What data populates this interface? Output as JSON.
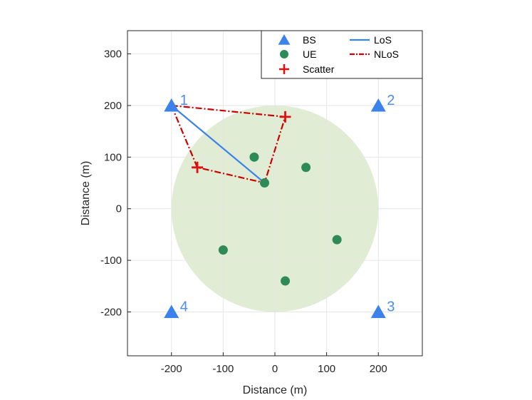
{
  "chart_data": {
    "type": "scatter",
    "xlabel": "Distance (m)",
    "ylabel": "Distance (m)",
    "xlim": [
      -285,
      285
    ],
    "ylim": [
      -285,
      345
    ],
    "xticks": [
      -200,
      -100,
      0,
      100,
      200
    ],
    "yticks": [
      -200,
      -100,
      0,
      100,
      200,
      300
    ],
    "grid": true,
    "legend_placement": "top-right",
    "coverage_region": {
      "center": [
        0,
        0
      ],
      "radius": 200,
      "color": "#e0ecd3"
    },
    "base_stations": {
      "name": "BS",
      "color": "#3b82ea",
      "points": [
        {
          "label": "1",
          "x": -200,
          "y": 200
        },
        {
          "label": "2",
          "x": 200,
          "y": 200
        },
        {
          "label": "3",
          "x": 200,
          "y": -200
        },
        {
          "label": "4",
          "x": -200,
          "y": -200
        }
      ]
    },
    "users": {
      "name": "UE",
      "color": "#2e8b57",
      "points": [
        {
          "x": -40,
          "y": 100
        },
        {
          "x": 60,
          "y": 80
        },
        {
          "x": -20,
          "y": 50
        },
        {
          "x": 120,
          "y": -60
        },
        {
          "x": -100,
          "y": -80
        },
        {
          "x": 20,
          "y": -140
        }
      ]
    },
    "scatterers": {
      "name": "Scatter",
      "color": "#e01010",
      "points": [
        {
          "x": -150,
          "y": 80
        },
        {
          "x": 20,
          "y": 178
        }
      ]
    },
    "los": {
      "name": "LoS",
      "color": "#3b82ea",
      "path": [
        [
          -200,
          200
        ],
        [
          -20,
          50
        ]
      ]
    },
    "nlos": {
      "name": "NLoS",
      "color": "#cc0000",
      "paths": [
        [
          [
            -200,
            200
          ],
          [
            20,
            178
          ],
          [
            -20,
            50
          ]
        ],
        [
          [
            -200,
            200
          ],
          [
            -150,
            80
          ],
          [
            -20,
            50
          ]
        ]
      ]
    }
  }
}
